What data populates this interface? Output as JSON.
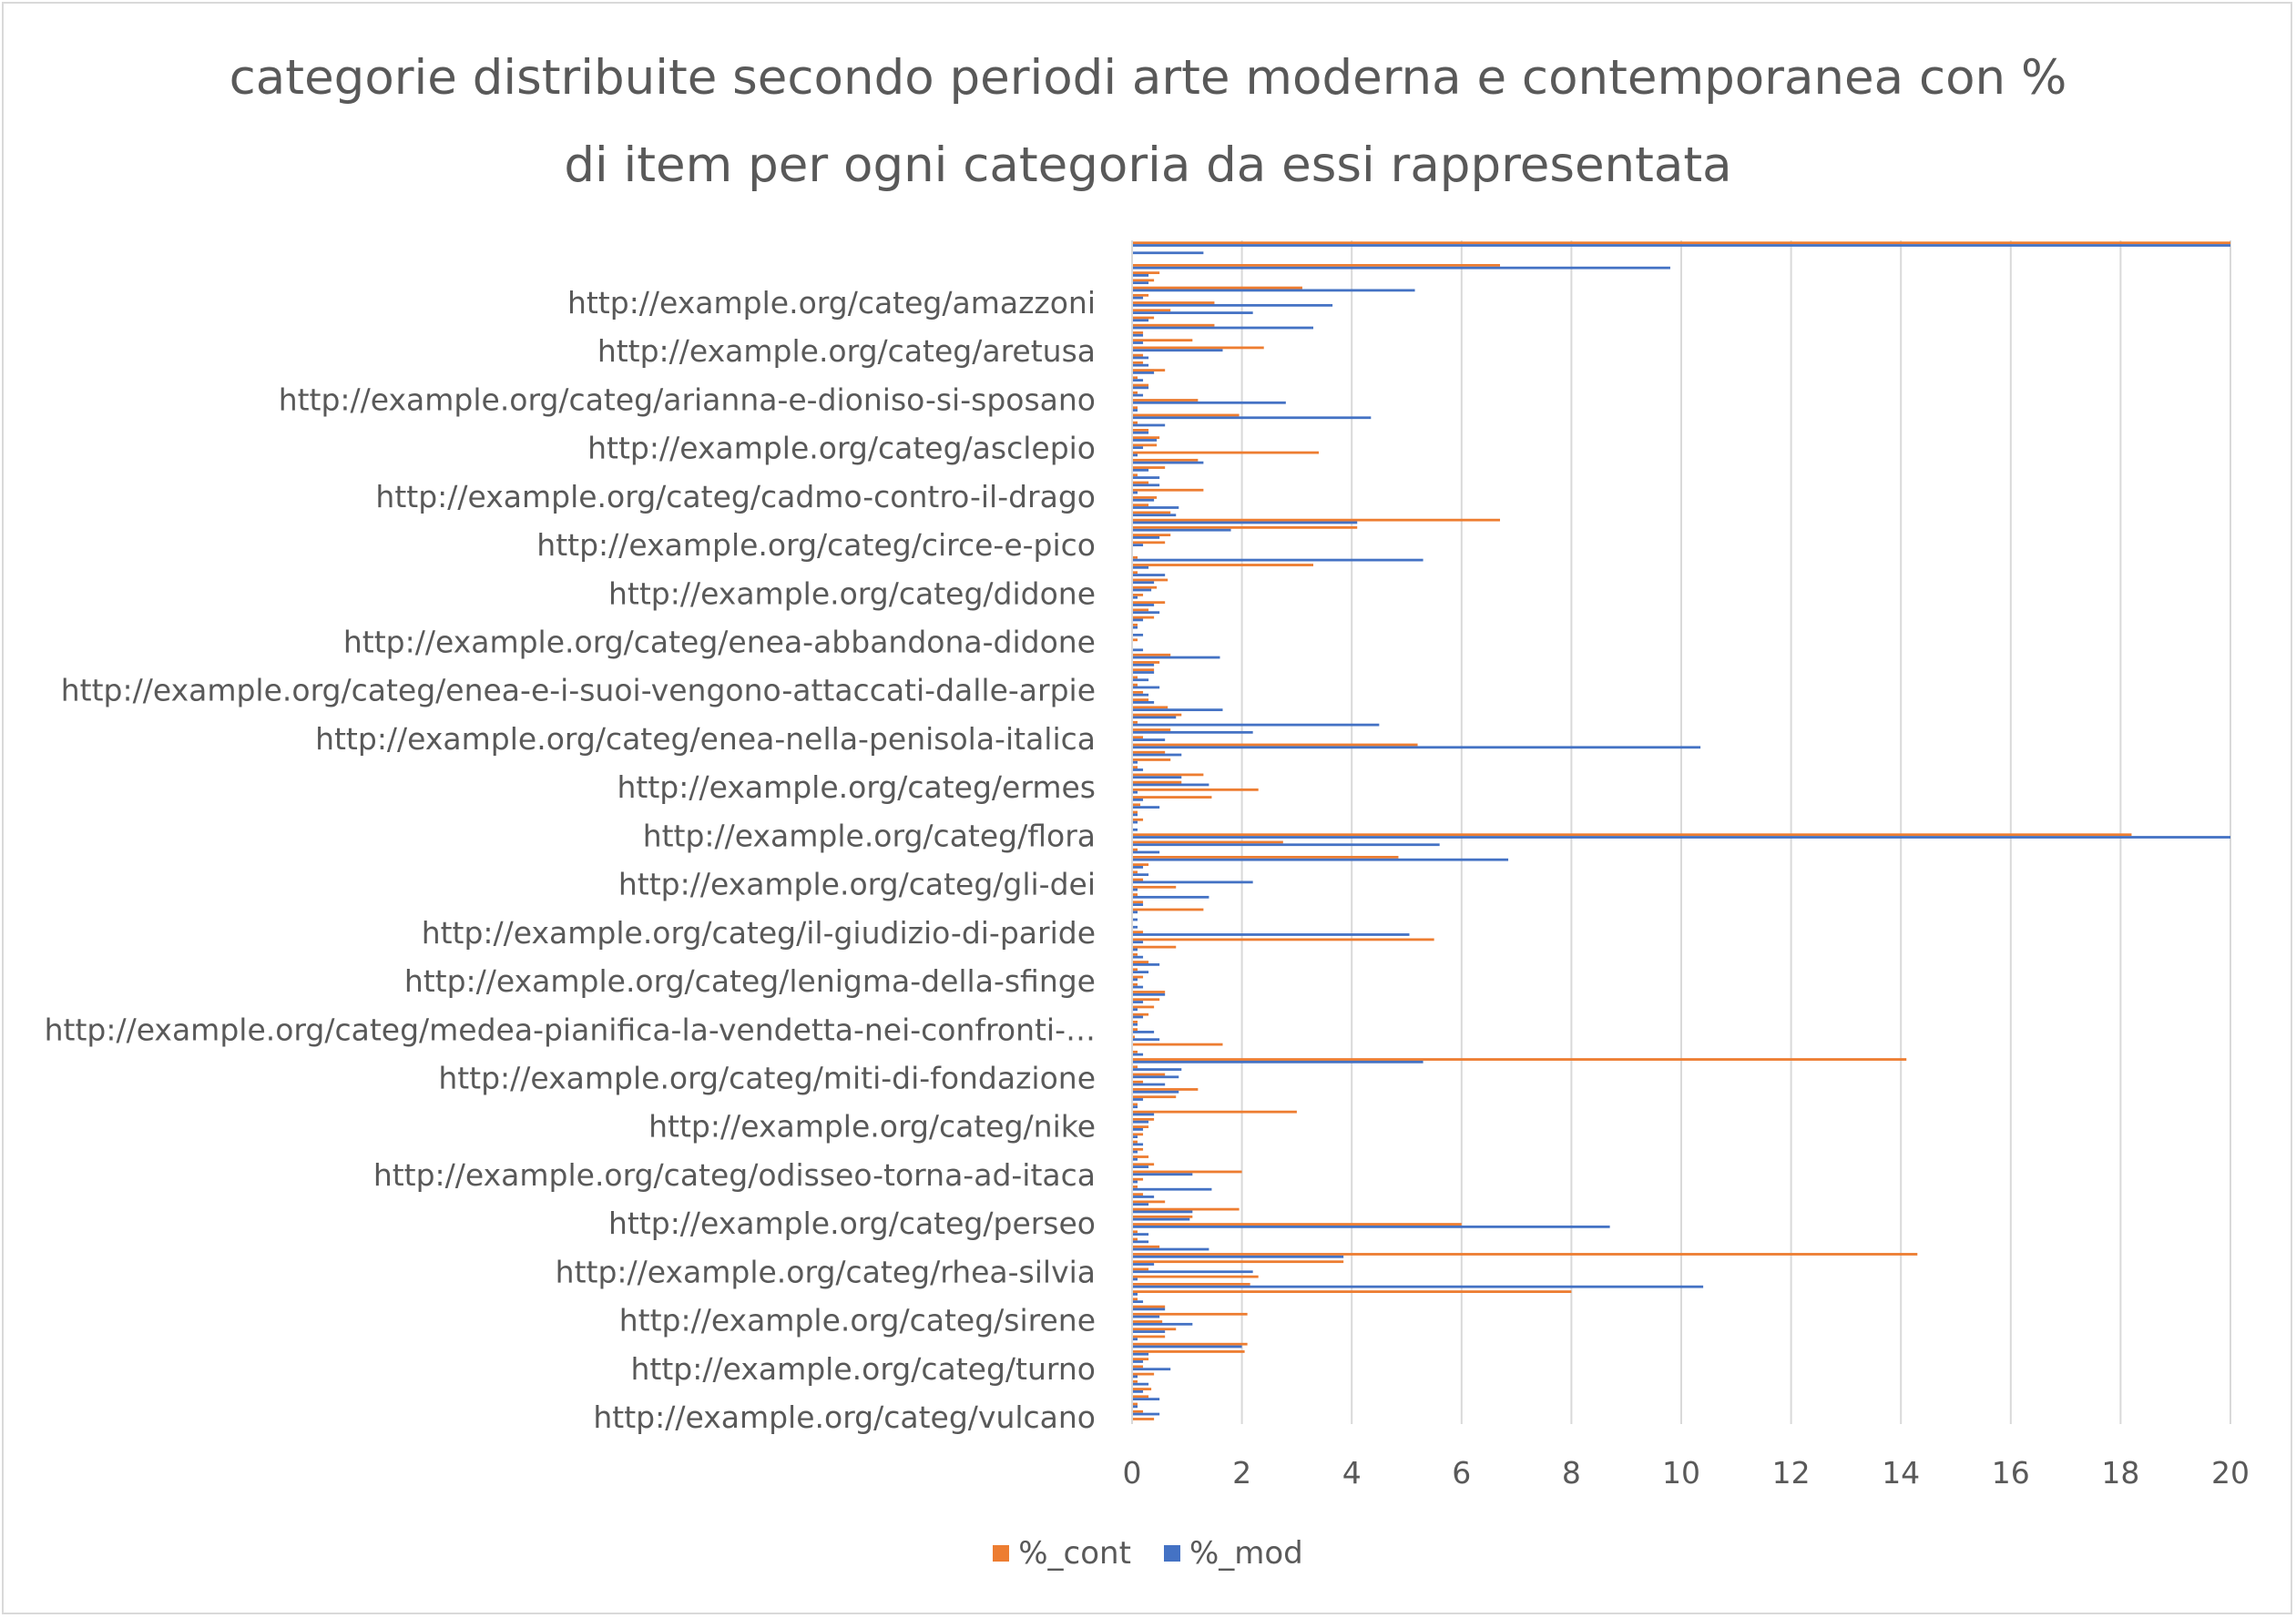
{
  "chart_data": {
    "type": "bar",
    "orientation": "horizontal",
    "title_lines": [
      "categorie distribuite secondo periodi arte moderna e contemporanea con %",
      "di item per ogni categoria da essi rappresentata"
    ],
    "xlim": [
      0,
      20
    ],
    "xticks": [
      "0",
      "2",
      "4",
      "6",
      "8",
      "10",
      "12",
      "14",
      "16",
      "18",
      "20"
    ],
    "grid": true,
    "legend_position": "bottom",
    "colors": {
      "cont": "#ed7d31",
      "mod": "#4472c4",
      "grid": "#d9d9d9",
      "text": "#595959"
    },
    "visible_category_labels": [
      "http://example.org/categ/amazzoni",
      "http://example.org/categ/aretusa",
      "http://example.org/categ/arianna-e-dioniso-si-sposano",
      "http://example.org/categ/asclepio",
      "http://example.org/categ/cadmo-contro-il-drago",
      "http://example.org/categ/circe-e-pico",
      "http://example.org/categ/didone",
      "http://example.org/categ/enea-abbandona-didone",
      "http://example.org/categ/enea-e-i-suoi-vengono-attaccati-dalle-arpie",
      "http://example.org/categ/enea-nella-penisola-italica",
      "http://example.org/categ/ermes",
      "http://example.org/categ/flora",
      "http://example.org/categ/gli-dei",
      "http://example.org/categ/il-giudizio-di-paride",
      "http://example.org/categ/lenigma-della-sfinge",
      "http://example.org/categ/medea-pianifica-la-vendetta-nei-confronti-…",
      "http://example.org/categ/miti-di-fondazione",
      "http://example.org/categ/nike",
      "http://example.org/categ/odisseo-torna-ad-itaca",
      "http://example.org/categ/perseo",
      "http://example.org/categ/rhea-silvia",
      "http://example.org/categ/sirene",
      "http://example.org/categ/turno",
      "http://example.org/categ/vulcano"
    ],
    "series": [
      {
        "name": "%_cont",
        "values": [
          20,
          0,
          0,
          6.7,
          0.5,
          0.4,
          3.1,
          0.3,
          1.5,
          0.7,
          0.4,
          1.5,
          0.2,
          1.1,
          2.4,
          0.2,
          0.2,
          0.6,
          0.1,
          0.3,
          0.1,
          1.2,
          0.1,
          1.95,
          0.1,
          0.3,
          0.5,
          0.45,
          3.4,
          1.2,
          0.6,
          0.1,
          0.3,
          1.3,
          0.45,
          0.3,
          0.7,
          6.7,
          4.1,
          0.7,
          0.6,
          0,
          0.1,
          3.3,
          0.1,
          0.65,
          0.45,
          0.2,
          0.6,
          0.3,
          0.4,
          0.1,
          0,
          0.1,
          0,
          0.7,
          0.5,
          0.4,
          0.1,
          0.1,
          0.2,
          0.3,
          0.65,
          0.9,
          0.1,
          0.7,
          0.2,
          5.2,
          0.6,
          0.7,
          0.1,
          1.3,
          0.9,
          2.3,
          1.45,
          0.15,
          0.1,
          0.2,
          0,
          18.2,
          2.75,
          0.1,
          4.85,
          0.3,
          0.1,
          0.2,
          0.8,
          0.1,
          0.2,
          1.3,
          0,
          0,
          0.2,
          5.5,
          0.8,
          0.1,
          0.3,
          0.1,
          0.2,
          0.1,
          0.6,
          0.5,
          0.4,
          0.3,
          0.1,
          0.1,
          0.05,
          1.65,
          0.1,
          14.1,
          0.1,
          0.6,
          0.2,
          1.2,
          0.8,
          0.1,
          3.0,
          0.4,
          0.3,
          0.2,
          0.1,
          0.2,
          0.3,
          0.4,
          2.0,
          0.2,
          0.1,
          0.2,
          0.6,
          1.95,
          1.1,
          6.0,
          0.1,
          0.1,
          0.5,
          14.3,
          3.85,
          0.3,
          2.3,
          2.15,
          8.0,
          0.1,
          0.6,
          2.1,
          0.55,
          0.8,
          0.6,
          2.1,
          2.05,
          0.3,
          0.2,
          0.4,
          0.1,
          0.35,
          0.3,
          0.1,
          0.2,
          0.4
        ],
        "color": "#ed7d31"
      },
      {
        "name": "%_mod",
        "values": [
          20,
          1.3,
          0,
          9.8,
          0.3,
          0.3,
          5.15,
          0.2,
          3.65,
          2.2,
          0.3,
          3.3,
          0.2,
          0.2,
          1.65,
          0.3,
          0.3,
          0.4,
          0.2,
          0.3,
          0.2,
          2.8,
          0.1,
          4.35,
          0.6,
          0.3,
          0.45,
          0.2,
          0.1,
          1.3,
          0.3,
          0.5,
          0.5,
          0.1,
          0.4,
          0.85,
          0.8,
          4.1,
          1.8,
          0.5,
          0.2,
          0,
          5.3,
          0.3,
          0.6,
          0.4,
          0.35,
          0.1,
          0.4,
          0.5,
          0.2,
          0.1,
          0.2,
          0,
          0.2,
          1.6,
          0.4,
          0.4,
          0.3,
          0.5,
          0.3,
          0.4,
          1.65,
          0.8,
          4.5,
          2.2,
          0.6,
          10.35,
          0.9,
          0.1,
          0.2,
          0.9,
          1.4,
          0.1,
          0.2,
          0.5,
          0.1,
          0.1,
          0.1,
          20.1,
          5.6,
          0.5,
          6.85,
          0.2,
          0.3,
          2.2,
          0.1,
          1.4,
          0.2,
          0.1,
          0.1,
          0.1,
          5.05,
          0.2,
          0.1,
          0.2,
          0.5,
          0.3,
          0.1,
          0.2,
          0.6,
          0.2,
          0.1,
          0.2,
          0.1,
          0.4,
          0.5,
          0,
          0.2,
          5.3,
          0.9,
          0.85,
          0.6,
          0.85,
          0.2,
          0.1,
          0.4,
          0.3,
          0.2,
          0.1,
          0.2,
          0.1,
          0.1,
          0.3,
          1.1,
          0.1,
          1.45,
          0.4,
          0.3,
          1.1,
          1.05,
          8.7,
          0.3,
          0.3,
          1.4,
          3.85,
          0.4,
          2.2,
          0.1,
          10.4,
          0.1,
          0.2,
          0.6,
          0.5,
          1.1,
          0.6,
          0.1,
          2.0,
          0.3,
          0.2,
          0.7,
          0.1,
          0.3,
          0.2,
          0.5,
          0.1,
          0.5
        ],
        "color": "#4472c4"
      }
    ]
  }
}
